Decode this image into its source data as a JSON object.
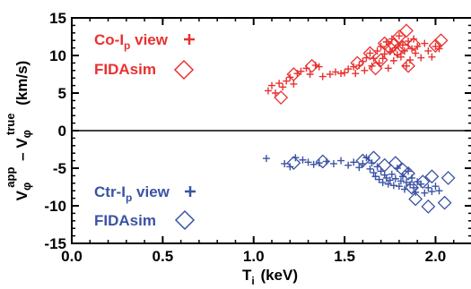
{
  "chart_data": {
    "type": "scatter",
    "xlim": [
      0.0,
      2.2
    ],
    "ylim": [
      -15,
      15
    ],
    "x_ticks": [
      "0.0",
      "0.5",
      "1.0",
      "1.5",
      "2.0"
    ],
    "x_tick_values": [
      0.0,
      0.5,
      1.0,
      1.5,
      2.0
    ],
    "y_ticks": [
      "15",
      "10",
      "5",
      "0",
      "-5",
      "-10",
      "-15"
    ],
    "y_tick_values": [
      15,
      10,
      5,
      0,
      -5,
      -10,
      -15
    ],
    "xlabel": "T_i (keV)",
    "ylabel": "V_φ^app − V_φ^true (km/s)",
    "zero_line": 0,
    "legend": [
      {
        "label_main": "Co-I",
        "label_sub": "p",
        "label_rest": " view",
        "marker": "plus",
        "color": "#e8312f"
      },
      {
        "label_main": "FIDAsim",
        "marker": "diamond",
        "color": "#e8312f"
      },
      {
        "label_main": "Ctr-I",
        "label_sub": "p",
        "label_rest": " view",
        "marker": "plus",
        "color": "#3b53a4"
      },
      {
        "label_main": "FIDAsim",
        "marker": "diamond",
        "color": "#3b53a4"
      }
    ],
    "series": [
      {
        "name": "Co-Ip view",
        "marker": "plus",
        "color": "#e8312f",
        "points": [
          [
            1.08,
            5.3
          ],
          [
            1.1,
            6.0
          ],
          [
            1.12,
            5.0
          ],
          [
            1.14,
            6.3
          ],
          [
            1.16,
            5.8
          ],
          [
            1.18,
            6.6
          ],
          [
            1.2,
            7.1
          ],
          [
            1.22,
            6.2
          ],
          [
            1.24,
            7.6
          ],
          [
            1.26,
            7.9
          ],
          [
            1.29,
            8.3
          ],
          [
            1.31,
            7.5
          ],
          [
            1.34,
            8.7
          ],
          [
            1.36,
            8.5
          ],
          [
            1.38,
            7.2
          ],
          [
            1.42,
            7.5
          ],
          [
            1.45,
            7.8
          ],
          [
            1.48,
            7.6
          ],
          [
            1.5,
            7.7
          ],
          [
            1.52,
            8.2
          ],
          [
            1.55,
            8.5
          ],
          [
            1.56,
            7.6
          ],
          [
            1.58,
            8.7
          ],
          [
            1.6,
            9.2
          ],
          [
            1.61,
            8.0
          ],
          [
            1.62,
            9.7
          ],
          [
            1.64,
            10.3
          ],
          [
            1.65,
            8.6
          ],
          [
            1.66,
            9.6
          ],
          [
            1.68,
            10.6
          ],
          [
            1.69,
            9.0
          ],
          [
            1.7,
            11.2
          ],
          [
            1.71,
            9.6
          ],
          [
            1.72,
            10.2
          ],
          [
            1.73,
            11.8
          ],
          [
            1.74,
            8.3
          ],
          [
            1.75,
            10.5
          ],
          [
            1.76,
            12.2
          ],
          [
            1.77,
            9.3
          ],
          [
            1.78,
            11.0
          ],
          [
            1.79,
            10.1
          ],
          [
            1.8,
            12.6
          ],
          [
            1.81,
            9.8
          ],
          [
            1.82,
            11.4
          ],
          [
            1.83,
            10.6
          ],
          [
            1.84,
            8.6
          ],
          [
            1.85,
            11.9
          ],
          [
            1.86,
            9.4
          ],
          [
            1.87,
            10.9
          ],
          [
            1.88,
            12.2
          ],
          [
            1.89,
            10.3
          ],
          [
            1.9,
            11.2
          ],
          [
            1.92,
            9.7
          ],
          [
            1.94,
            11.6
          ],
          [
            1.96,
            10.6
          ],
          [
            1.98,
            9.8
          ],
          [
            2.0,
            11.2
          ],
          [
            2.02,
            10.9
          ]
        ]
      },
      {
        "name": "FIDAsim (co)",
        "marker": "diamond",
        "color": "#e8312f",
        "points": [
          [
            1.15,
            4.4
          ],
          [
            1.22,
            7.5
          ],
          [
            1.32,
            8.6
          ],
          [
            1.57,
            9.0
          ],
          [
            1.64,
            10.3
          ],
          [
            1.67,
            8.3
          ],
          [
            1.7,
            9.4
          ],
          [
            1.72,
            11.6
          ],
          [
            1.75,
            11.0
          ],
          [
            1.77,
            11.4
          ],
          [
            1.79,
            10.7
          ],
          [
            1.8,
            12.5
          ],
          [
            1.82,
            11.1
          ],
          [
            1.84,
            13.3
          ],
          [
            1.85,
            8.6
          ],
          [
            1.88,
            11.5
          ],
          [
            2.0,
            11.3
          ],
          [
            2.03,
            12.0
          ]
        ]
      },
      {
        "name": "Ctr-Ip view",
        "marker": "plus",
        "color": "#3b53a4",
        "points": [
          [
            1.07,
            -3.7
          ],
          [
            1.17,
            -4.4
          ],
          [
            1.2,
            -4.8
          ],
          [
            1.23,
            -3.6
          ],
          [
            1.27,
            -3.9
          ],
          [
            1.3,
            -4.2
          ],
          [
            1.33,
            -4.5
          ],
          [
            1.36,
            -4.3
          ],
          [
            1.4,
            -4.1
          ],
          [
            1.44,
            -4.4
          ],
          [
            1.48,
            -4.0
          ],
          [
            1.52,
            -4.6
          ],
          [
            1.55,
            -4.2
          ],
          [
            1.58,
            -4.9
          ],
          [
            1.6,
            -4.4
          ],
          [
            1.62,
            -3.6
          ],
          [
            1.64,
            -5.1
          ],
          [
            1.65,
            -4.3
          ],
          [
            1.66,
            -5.6
          ],
          [
            1.67,
            -6.1
          ],
          [
            1.68,
            -4.8
          ],
          [
            1.69,
            -6.5
          ],
          [
            1.7,
            -5.4
          ],
          [
            1.71,
            -6.9
          ],
          [
            1.72,
            -5.9
          ],
          [
            1.73,
            -6.3
          ],
          [
            1.74,
            -7.1
          ],
          [
            1.75,
            -6.6
          ],
          [
            1.76,
            -5.8
          ],
          [
            1.77,
            -7.3
          ],
          [
            1.78,
            -6.4
          ],
          [
            1.79,
            -5.0
          ],
          [
            1.8,
            -7.4
          ],
          [
            1.81,
            -6.7
          ],
          [
            1.82,
            -6.1
          ],
          [
            1.83,
            -7.8
          ],
          [
            1.84,
            -6.9
          ],
          [
            1.85,
            -5.4
          ],
          [
            1.86,
            -7.2
          ],
          [
            1.87,
            -6.3
          ],
          [
            1.88,
            -7.6
          ],
          [
            1.89,
            -8.2
          ],
          [
            1.9,
            -6.8
          ],
          [
            1.92,
            -7.1
          ],
          [
            1.94,
            -8.3
          ],
          [
            1.96,
            -7.6
          ],
          [
            1.98,
            -8.1
          ],
          [
            2.0,
            -7.4
          ],
          [
            2.02,
            -8.0
          ]
        ]
      },
      {
        "name": "FIDAsim (ctr)",
        "marker": "diamond",
        "color": "#3b53a4",
        "points": [
          [
            1.22,
            -4.3
          ],
          [
            1.38,
            -4.1
          ],
          [
            1.6,
            -4.0
          ],
          [
            1.66,
            -3.6
          ],
          [
            1.72,
            -4.6
          ],
          [
            1.78,
            -4.3
          ],
          [
            1.82,
            -5.2
          ],
          [
            1.85,
            -5.7
          ],
          [
            1.87,
            -7.6
          ],
          [
            1.89,
            -9.1
          ],
          [
            1.93,
            -6.8
          ],
          [
            1.96,
            -10.1
          ],
          [
            1.98,
            -6.1
          ],
          [
            2.05,
            -9.6
          ],
          [
            2.07,
            -6.3
          ]
        ]
      }
    ]
  }
}
